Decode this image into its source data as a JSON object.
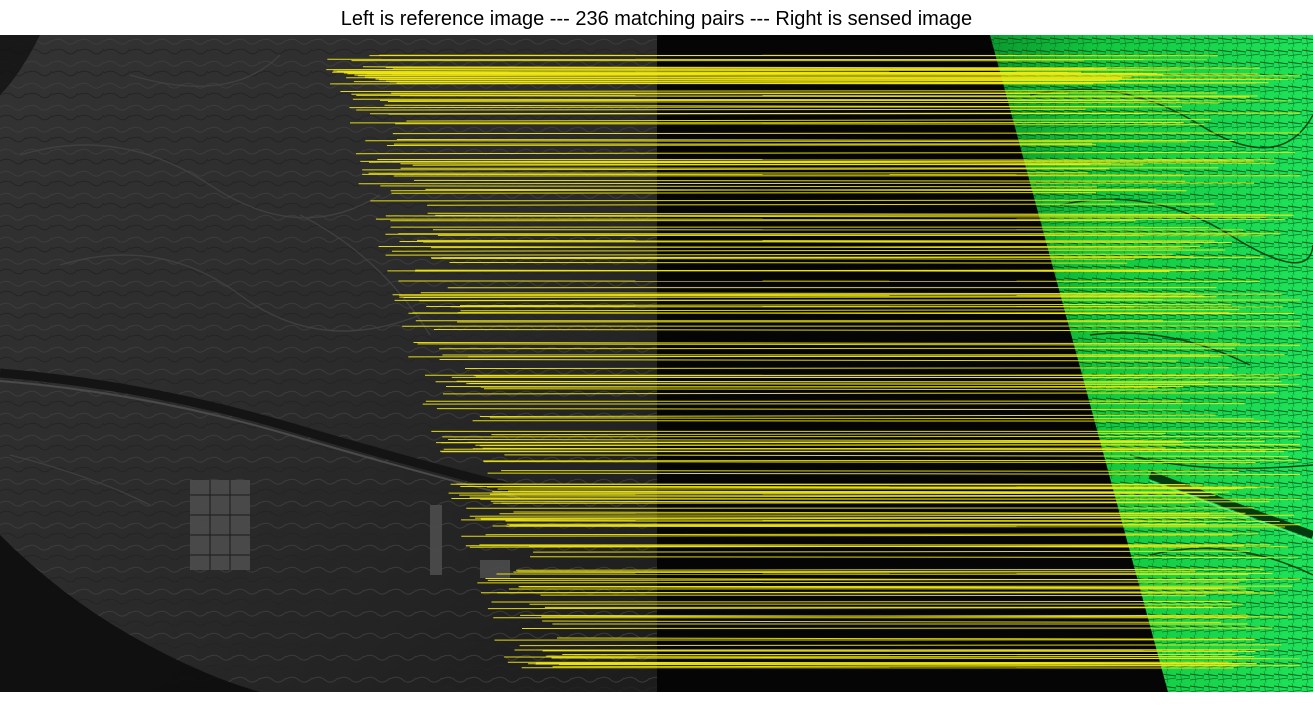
{
  "figure": {
    "title": "Left is reference image --- 236 matching pairs --- Right is sensed image",
    "num_matches": 236
  },
  "colors": {
    "background": "#ffffff",
    "title_text": "#000000",
    "reference_image_tone": "#2a2a2a",
    "sensed_image_tone": "#0fd84a",
    "match_line": "#f2ea12"
  },
  "images": {
    "reference": {
      "label": "reference image",
      "type": "grayscale satellite"
    },
    "sensed": {
      "label": "sensed image",
      "type": "green-tinted satellite"
    }
  }
}
